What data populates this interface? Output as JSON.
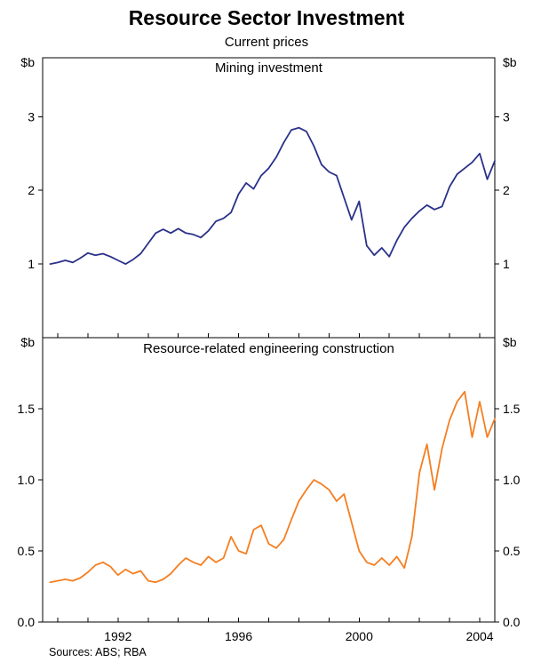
{
  "figure": {
    "title": "Resource Sector Investment",
    "subtitle": "Current prices",
    "source": "Sources: ABS; RBA",
    "unit_label": "$b"
  },
  "axes": {
    "xlim": [
      1989.5,
      2004.5
    ],
    "x_ticks_labeled": [
      "1992",
      "1996",
      "2000",
      "2004"
    ],
    "x_minor_step_years": 1,
    "grid": "off",
    "legend": "none"
  },
  "chart_data": [
    {
      "type": "line",
      "title": "Mining investment",
      "unit": "$b",
      "color": "#2a3189",
      "x_start": 1989.75,
      "x_step": 0.25,
      "frequency": "quarterly",
      "ylim": [
        0,
        3.8
      ],
      "yticks": [
        1,
        2,
        3
      ],
      "ytick_labels": [
        "1",
        "2",
        "3"
      ],
      "values": [
        1.0,
        1.02,
        1.05,
        1.02,
        1.08,
        1.15,
        1.12,
        1.14,
        1.1,
        1.05,
        1.0,
        1.06,
        1.14,
        1.28,
        1.42,
        1.47,
        1.42,
        1.48,
        1.42,
        1.4,
        1.36,
        1.45,
        1.58,
        1.62,
        1.7,
        1.95,
        2.1,
        2.02,
        2.2,
        2.3,
        2.45,
        2.65,
        2.82,
        2.85,
        2.8,
        2.6,
        2.35,
        2.25,
        2.2,
        1.9,
        1.6,
        1.85,
        1.25,
        1.12,
        1.22,
        1.1,
        1.32,
        1.5,
        1.62,
        1.72,
        1.8,
        1.74,
        1.78,
        2.05,
        2.22,
        2.3,
        2.38,
        2.5,
        2.15,
        2.4
      ]
    },
    {
      "type": "line",
      "title": "Resource-related engineering construction",
      "unit": "$b",
      "color": "#f57e20",
      "x_start": 1989.75,
      "x_step": 0.25,
      "frequency": "quarterly",
      "ylim": [
        0,
        2
      ],
      "yticks": [
        0,
        0.5,
        1.0,
        1.5
      ],
      "ytick_labels": [
        "0.0",
        "0.5",
        "1.0",
        "1.5"
      ],
      "values": [
        0.28,
        0.29,
        0.3,
        0.29,
        0.31,
        0.35,
        0.4,
        0.42,
        0.39,
        0.33,
        0.37,
        0.34,
        0.36,
        0.29,
        0.28,
        0.3,
        0.34,
        0.4,
        0.45,
        0.42,
        0.4,
        0.46,
        0.42,
        0.45,
        0.6,
        0.5,
        0.48,
        0.65,
        0.68,
        0.55,
        0.52,
        0.58,
        0.72,
        0.85,
        0.93,
        1.0,
        0.97,
        0.93,
        0.85,
        0.9,
        0.7,
        0.5,
        0.42,
        0.4,
        0.45,
        0.4,
        0.46,
        0.38,
        0.6,
        1.05,
        1.25,
        0.93,
        1.22,
        1.42,
        1.55,
        1.62,
        1.3,
        1.55,
        1.3,
        1.43
      ]
    }
  ]
}
